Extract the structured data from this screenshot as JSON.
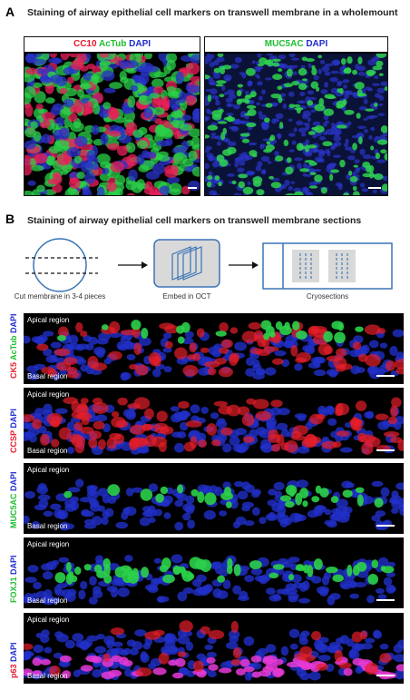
{
  "panel_a": {
    "letter": "A",
    "title": "Staining of airway epithelial cell markers on transwell membrane in a wholemount",
    "left_image": {
      "markers": [
        {
          "text": "CC10",
          "color": "#e6192b"
        },
        {
          "text": " AcTub",
          "color": "#1fbf2f"
        },
        {
          "text": " DAPI",
          "color": "#1f2bd0"
        }
      ]
    },
    "right_image": {
      "markers": [
        {
          "text": "MUC5AC",
          "color": "#1fbf2f"
        },
        {
          "text": " DAPI",
          "color": "#1f2bd0"
        }
      ]
    }
  },
  "panel_b": {
    "letter": "B",
    "title": "Staining of airway epithelial cell markers on transwell membrane sections",
    "schematic": {
      "step1": "Cut membrane in 3-4 pieces",
      "step2": "Embed in OCT",
      "step3": "Cryosections"
    },
    "sections": [
      {
        "apical": "Apical region",
        "basal": "Basal region",
        "label": [
          {
            "text": "CK5",
            "color": "#e6192b"
          },
          {
            "text": " AcTub",
            "color": "#1fbf2f"
          },
          {
            "text": " DAPI",
            "color": "#1f2bd0"
          }
        ]
      },
      {
        "apical": "Apical region",
        "basal": "Basal region",
        "label": [
          {
            "text": "CCSP",
            "color": "#e6192b"
          },
          {
            "text": " DAPI",
            "color": "#1f2bd0"
          }
        ]
      },
      {
        "apical": "Apical region",
        "basal": "Basal region",
        "label": [
          {
            "text": "MUC5AC",
            "color": "#1fbf2f"
          },
          {
            "text": " DAPI",
            "color": "#1f2bd0"
          }
        ]
      },
      {
        "apical": "Apical region",
        "basal": "Basal region",
        "label": [
          {
            "text": "FOXJ1",
            "color": "#1fbf2f"
          },
          {
            "text": " DAPI",
            "color": "#1f2bd0"
          }
        ]
      },
      {
        "apical": "Apical region",
        "basal": "Basal region",
        "label": [
          {
            "text": "p63",
            "color": "#e6192b"
          },
          {
            "text": " DAPI",
            "color": "#1f2bd0"
          }
        ]
      }
    ]
  }
}
